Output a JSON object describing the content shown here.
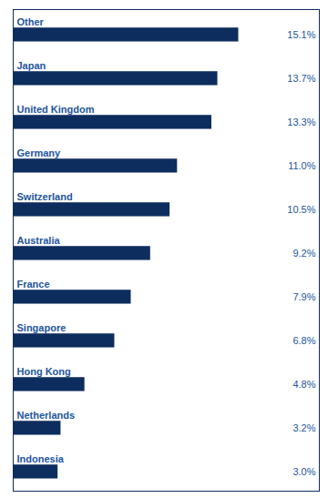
{
  "chart_data": {
    "type": "bar",
    "orientation": "horizontal",
    "categories": [
      "Other",
      "Japan",
      "United Kingdom",
      "Germany",
      "Switzerland",
      "Australia",
      "France",
      "Singapore",
      "Hong Kong",
      "Netherlands",
      "Indonesia"
    ],
    "values": [
      15.1,
      13.7,
      13.3,
      11.0,
      10.5,
      9.2,
      7.9,
      6.8,
      4.8,
      3.2,
      3.0
    ],
    "value_labels": [
      "15.1%",
      "13.7%",
      "13.3%",
      "11.0%",
      "10.5%",
      "9.2%",
      "7.9%",
      "6.8%",
      "4.8%",
      "3.2%",
      "3.0%"
    ],
    "data_labels": true,
    "color": "#0d2d5e",
    "xlim": [
      0,
      20.5
    ],
    "xticks": [],
    "tick_labels": false,
    "grid": false
  }
}
